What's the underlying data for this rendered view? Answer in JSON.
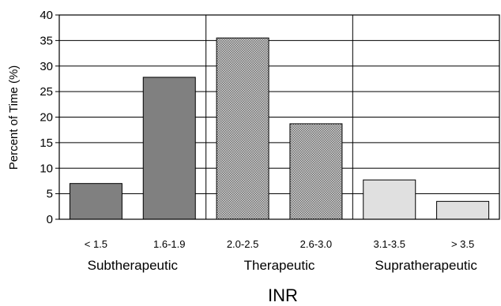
{
  "chart_data": {
    "type": "bar",
    "categories": [
      "< 1.5",
      "1.6-1.9",
      "2.0-2.5",
      "2.6-3.0",
      "3.1-3.5",
      "> 3.5"
    ],
    "values": [
      7,
      27.8,
      35.5,
      18.7,
      7.7,
      3.5
    ],
    "bar_colors": [
      "#808080",
      "#808080",
      "#a6a6a6",
      "#a6a6a6",
      "#e0e0e0",
      "#e0e0e0"
    ],
    "bar_patterns": [
      "solid",
      "solid",
      "dotted",
      "dotted",
      "solid",
      "solid"
    ],
    "groups": [
      {
        "label": "Subtherapeutic",
        "categories": [
          "< 1.5",
          "1.6-1.9"
        ]
      },
      {
        "label": "Therapeutic",
        "categories": [
          "2.0-2.5",
          "2.6-3.0"
        ]
      },
      {
        "label": "Supratherapeutic",
        "categories": [
          "3.1-3.5",
          "> 3.5"
        ]
      }
    ],
    "title": "",
    "xlabel": "INR",
    "ylabel": "Percent of Time (%)",
    "ylim": [
      0,
      40
    ],
    "yticks": [
      0,
      5,
      10,
      15,
      20,
      25,
      30,
      35,
      40
    ],
    "grid": true,
    "group_separators": true,
    "legend": "none"
  }
}
